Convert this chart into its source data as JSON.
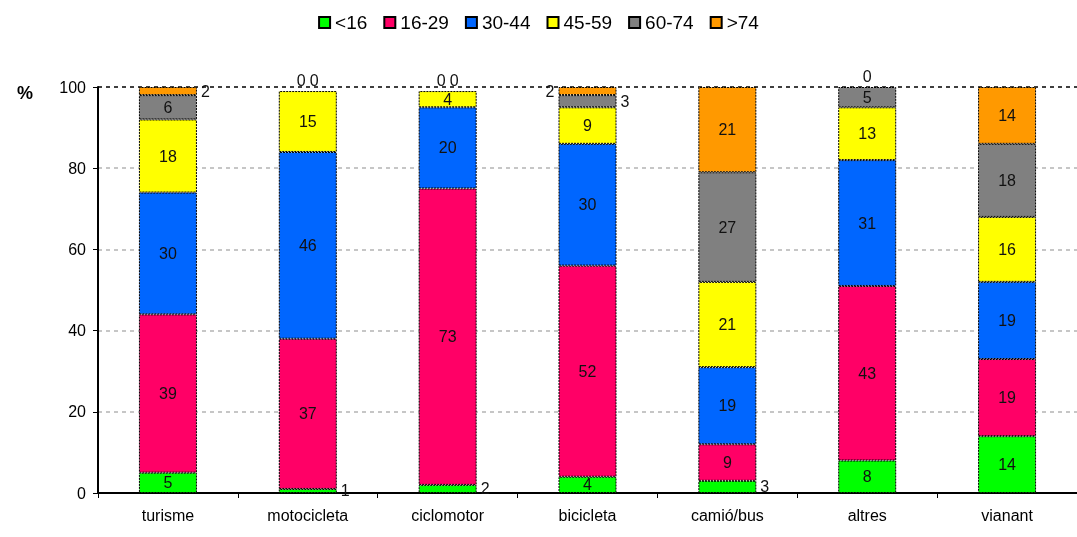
{
  "chart_data": {
    "type": "bar",
    "stacked": true,
    "ylabel": "%",
    "categories": [
      "turisme",
      "motocicleta",
      "ciclomotor",
      "bicicleta",
      "camió/bus",
      "altres",
      "vianant"
    ],
    "series": [
      {
        "name": "<16",
        "color": "#00ff00",
        "values": [
          5,
          1,
          2,
          4,
          3,
          8,
          14
        ]
      },
      {
        "name": "16-29",
        "color": "#ff0066",
        "values": [
          39,
          37,
          73,
          52,
          9,
          43,
          19
        ]
      },
      {
        "name": "30-44",
        "color": "#0066ff",
        "values": [
          30,
          46,
          20,
          30,
          19,
          31,
          19
        ]
      },
      {
        "name": "45-59",
        "color": "#ffff00",
        "values": [
          18,
          15,
          4,
          9,
          21,
          13,
          16
        ]
      },
      {
        "name": "60-74",
        "color": "#808080",
        "values": [
          6,
          0,
          0,
          3,
          27,
          5,
          18
        ]
      },
      {
        "name": ">74",
        "color": "#ff9900",
        "values": [
          2,
          0,
          0,
          2,
          21,
          0,
          14
        ]
      }
    ],
    "ylim": [
      0,
      100
    ],
    "yticks": [
      0,
      20,
      40,
      60,
      80,
      100
    ],
    "grid": "y",
    "legend": "top",
    "data_labels": true
  }
}
